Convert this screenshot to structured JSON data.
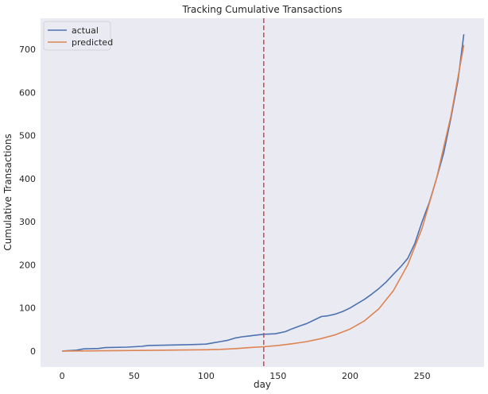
{
  "chart_data": {
    "type": "line",
    "title": "Tracking Cumulative Transactions",
    "xlabel": "day",
    "ylabel": "Cumulative Transactions",
    "xlim": [
      -15,
      293
    ],
    "ylim": [
      -37,
      772
    ],
    "xticks": [
      0,
      50,
      100,
      150,
      200,
      250
    ],
    "yticks": [
      0,
      100,
      200,
      300,
      400,
      500,
      600,
      700
    ],
    "grid": false,
    "legend": "top-left",
    "background": "#eaeaf2",
    "vline": {
      "x": 140,
      "color": "#c44e52",
      "style": "dashed"
    },
    "series": [
      {
        "name": "actual",
        "color": "#4c72b0",
        "points": [
          [
            0,
            0
          ],
          [
            10,
            2
          ],
          [
            15,
            5
          ],
          [
            25,
            6
          ],
          [
            30,
            8
          ],
          [
            45,
            9
          ],
          [
            55,
            11
          ],
          [
            60,
            13
          ],
          [
            90,
            15
          ],
          [
            100,
            16
          ],
          [
            105,
            19
          ],
          [
            110,
            22
          ],
          [
            115,
            25
          ],
          [
            120,
            30
          ],
          [
            125,
            33
          ],
          [
            130,
            35
          ],
          [
            135,
            37
          ],
          [
            140,
            39
          ],
          [
            148,
            40
          ],
          [
            155,
            45
          ],
          [
            160,
            52
          ],
          [
            165,
            58
          ],
          [
            170,
            64
          ],
          [
            175,
            72
          ],
          [
            180,
            80
          ],
          [
            185,
            82
          ],
          [
            190,
            86
          ],
          [
            195,
            92
          ],
          [
            200,
            100
          ],
          [
            205,
            110
          ],
          [
            210,
            120
          ],
          [
            215,
            132
          ],
          [
            220,
            145
          ],
          [
            225,
            160
          ],
          [
            230,
            178
          ],
          [
            235,
            195
          ],
          [
            240,
            215
          ],
          [
            245,
            250
          ],
          [
            250,
            300
          ],
          [
            255,
            345
          ],
          [
            260,
            400
          ],
          [
            265,
            460
          ],
          [
            270,
            540
          ],
          [
            275,
            630
          ],
          [
            279,
            735
          ]
        ]
      },
      {
        "name": "predicted",
        "color": "#dd8452",
        "points": [
          [
            0,
            0
          ],
          [
            20,
            0.5
          ],
          [
            60,
            1.5
          ],
          [
            100,
            3
          ],
          [
            110,
            4
          ],
          [
            120,
            5.5
          ],
          [
            130,
            8
          ],
          [
            140,
            10
          ],
          [
            150,
            13
          ],
          [
            160,
            17
          ],
          [
            170,
            22
          ],
          [
            180,
            29
          ],
          [
            190,
            38
          ],
          [
            200,
            51
          ],
          [
            210,
            70
          ],
          [
            220,
            98
          ],
          [
            230,
            140
          ],
          [
            240,
            200
          ],
          [
            250,
            285
          ],
          [
            260,
            400
          ],
          [
            270,
            545
          ],
          [
            279,
            710
          ]
        ]
      }
    ]
  }
}
